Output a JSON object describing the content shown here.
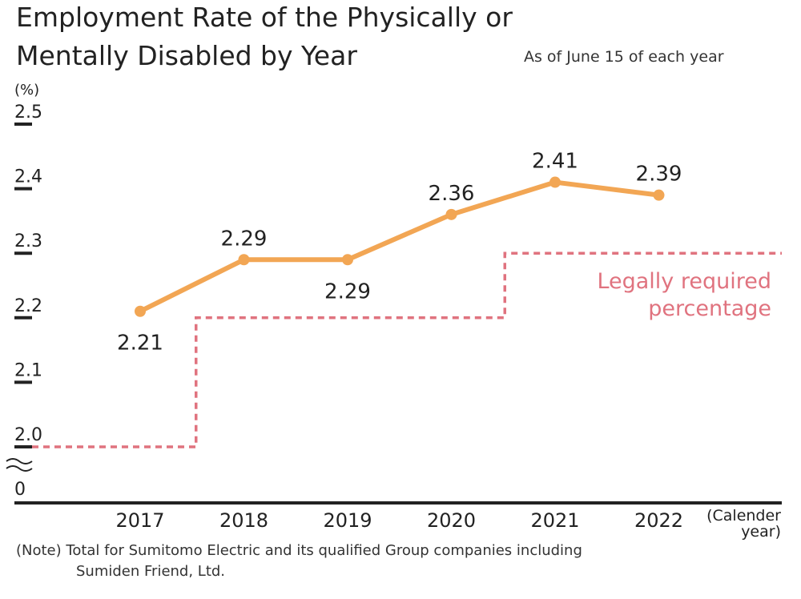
{
  "title_line1": "Employment Rate of the Physically or",
  "title_line2": "Mentally Disabled by Year",
  "subtitle": "As of June 15 of each year",
  "note_line1": "(Note) Total for Sumitomo Electric and its qualified Group companies including",
  "note_line2": "Sumiden Friend, Ltd.",
  "colors": {
    "series": "#f2a654",
    "legal": "#e0737f",
    "axis": "#222222",
    "text": "#222222"
  },
  "chart_data": {
    "type": "line",
    "ylabel": "(%)",
    "xlabel_line1": "(Calender",
    "xlabel_line2": "year)",
    "x": [
      "2017",
      "2018",
      "2019",
      "2020",
      "2021",
      "2022"
    ],
    "ylim": [
      2.0,
      2.5
    ],
    "y_ticks": [
      "2.0",
      "2.1",
      "2.2",
      "2.3",
      "2.4",
      "2.5"
    ],
    "zero_label": "0",
    "axis_break": true,
    "series": [
      {
        "values": [
          2.21,
          2.29,
          2.29,
          2.36,
          2.41,
          2.39
        ],
        "labels": [
          "2.21",
          "2.29",
          "2.29",
          "2.36",
          "2.41",
          "2.39"
        ],
        "label_position": [
          "below",
          "above",
          "below",
          "above",
          "above",
          "above"
        ]
      }
    ],
    "legal_required": {
      "label_line1": "Legally required",
      "label_line2": "percentage",
      "steps": [
        {
          "from": "start",
          "to": "2017-2018",
          "value": 2.0
        },
        {
          "from": "2017-2018",
          "to": "2020-2021",
          "value": 2.2
        },
        {
          "from": "2020-2021",
          "to": "end",
          "value": 2.3
        }
      ]
    },
    "grid": false,
    "legend": "none"
  }
}
